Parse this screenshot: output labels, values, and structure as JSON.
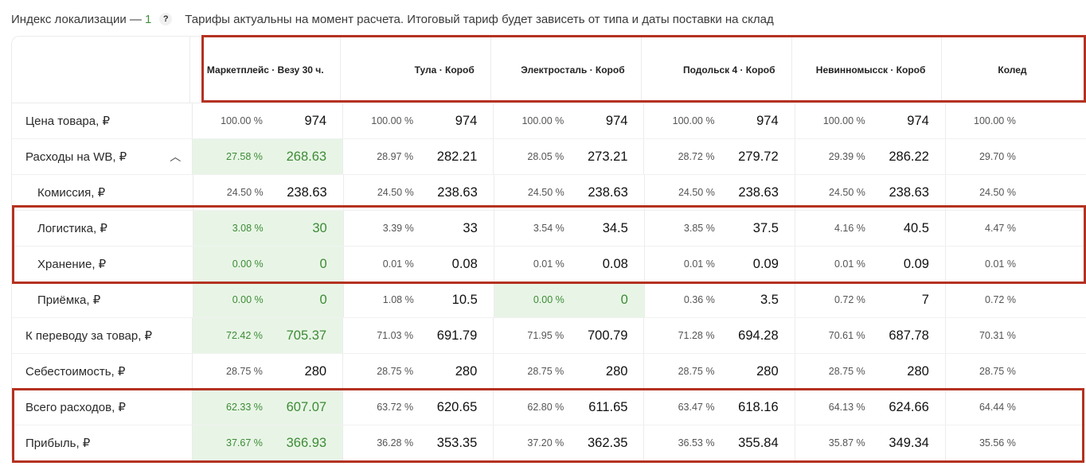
{
  "topbar": {
    "index_label": "Индекс локализации —",
    "index_value": "1",
    "help_icon": "?",
    "note": "Тарифы актуальны на момент расчета. Итоговый тариф будет зависеть от типа и даты поставки на склад"
  },
  "columns": [
    "Маркетплейс · Везу 30 ч.",
    "Тула · Короб",
    "Электросталь · Короб",
    "Подольск 4 · Короб",
    "Невинномысск · Короб",
    "Колед"
  ],
  "rows": [
    {
      "label": "Цена товара, ₽",
      "cells": [
        [
          "100.00 %",
          "974"
        ],
        [
          "100.00 %",
          "974"
        ],
        [
          "100.00 %",
          "974"
        ],
        [
          "100.00 %",
          "974"
        ],
        [
          "100.00 %",
          "974"
        ],
        [
          "100.00 %",
          ""
        ]
      ]
    },
    {
      "label": "Расходы на WB, ₽",
      "cells": [
        [
          "27.58 %",
          "268.63"
        ],
        [
          "28.97 %",
          "282.21"
        ],
        [
          "28.05 %",
          "273.21"
        ],
        [
          "28.72 %",
          "279.72"
        ],
        [
          "29.39 %",
          "286.22"
        ],
        [
          "29.70 %",
          ""
        ]
      ]
    },
    {
      "label": "Комиссия, ₽",
      "cells": [
        [
          "24.50 %",
          "238.63"
        ],
        [
          "24.50 %",
          "238.63"
        ],
        [
          "24.50 %",
          "238.63"
        ],
        [
          "24.50 %",
          "238.63"
        ],
        [
          "24.50 %",
          "238.63"
        ],
        [
          "24.50 %",
          ""
        ]
      ]
    },
    {
      "label": "Логистика, ₽",
      "cells": [
        [
          "3.08 %",
          "30"
        ],
        [
          "3.39 %",
          "33"
        ],
        [
          "3.54 %",
          "34.5"
        ],
        [
          "3.85 %",
          "37.5"
        ],
        [
          "4.16 %",
          "40.5"
        ],
        [
          "4.47 %",
          ""
        ]
      ]
    },
    {
      "label": "Хранение, ₽",
      "cells": [
        [
          "0.00 %",
          "0"
        ],
        [
          "0.01 %",
          "0.08"
        ],
        [
          "0.01 %",
          "0.08"
        ],
        [
          "0.01 %",
          "0.09"
        ],
        [
          "0.01 %",
          "0.09"
        ],
        [
          "0.01 %",
          ""
        ]
      ]
    },
    {
      "label": "Приёмка, ₽",
      "cells": [
        [
          "0.00 %",
          "0"
        ],
        [
          "1.08 %",
          "10.5"
        ],
        [
          "0.00 %",
          "0"
        ],
        [
          "0.36 %",
          "3.5"
        ],
        [
          "0.72 %",
          "7"
        ],
        [
          "0.72 %",
          ""
        ]
      ]
    },
    {
      "label": "К переводу за товар, ₽",
      "cells": [
        [
          "72.42 %",
          "705.37"
        ],
        [
          "71.03 %",
          "691.79"
        ],
        [
          "71.95 %",
          "700.79"
        ],
        [
          "71.28 %",
          "694.28"
        ],
        [
          "70.61 %",
          "687.78"
        ],
        [
          "70.31 %",
          ""
        ]
      ]
    },
    {
      "label": "Себестоимость, ₽",
      "cells": [
        [
          "28.75 %",
          "280"
        ],
        [
          "28.75 %",
          "280"
        ],
        [
          "28.75 %",
          "280"
        ],
        [
          "28.75 %",
          "280"
        ],
        [
          "28.75 %",
          "280"
        ],
        [
          "28.75 %",
          ""
        ]
      ]
    },
    {
      "label": "Всего расходов, ₽",
      "cells": [
        [
          "62.33 %",
          "607.07"
        ],
        [
          "63.72 %",
          "620.65"
        ],
        [
          "62.80 %",
          "611.65"
        ],
        [
          "63.47 %",
          "618.16"
        ],
        [
          "64.13 %",
          "624.66"
        ],
        [
          "64.44 %",
          ""
        ]
      ]
    },
    {
      "label": "Прибыль, ₽",
      "cells": [
        [
          "37.67 %",
          "366.93"
        ],
        [
          "36.28 %",
          "353.35"
        ],
        [
          "37.20 %",
          "362.35"
        ],
        [
          "36.53 %",
          "355.84"
        ],
        [
          "35.87 %",
          "349.34"
        ],
        [
          "35.56 %",
          ""
        ]
      ]
    }
  ],
  "colors": {
    "highlight_bg": "#e8f5e6",
    "highlight_text": "#3d8b36",
    "annotation_box": "#b43221"
  }
}
